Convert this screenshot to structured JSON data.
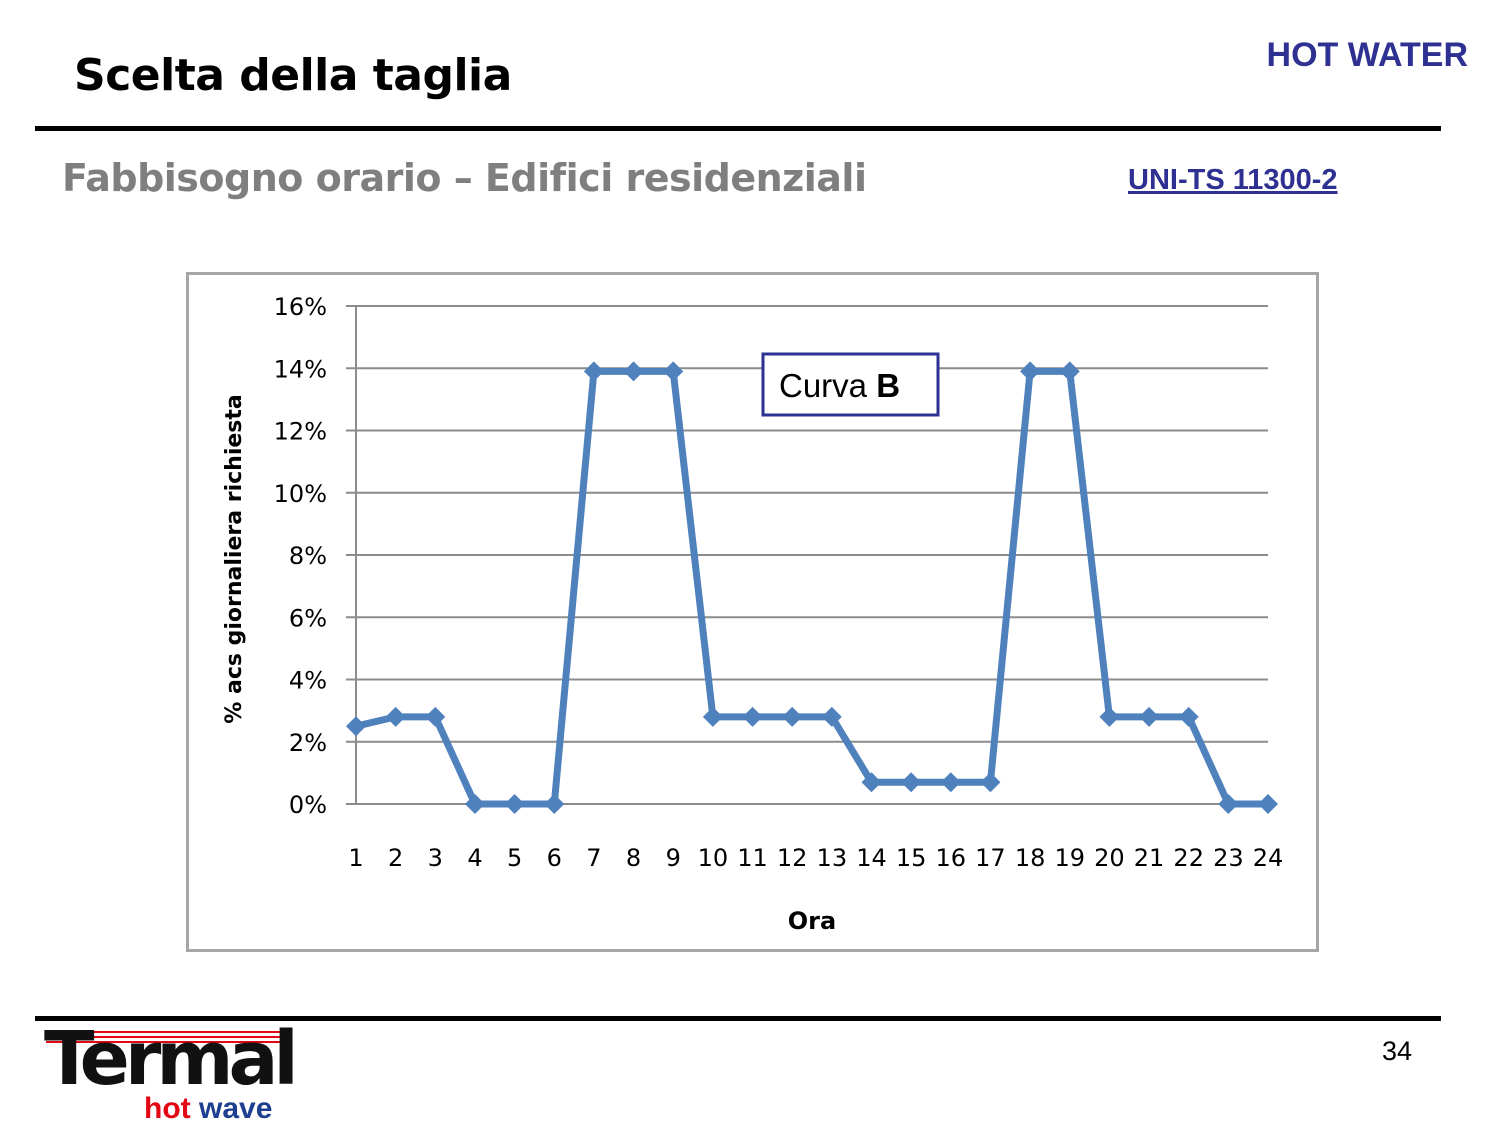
{
  "header": {
    "title": "Scelta della taglia",
    "brand_tag": "HOT WATER",
    "subtitle": "Fabbisogno orario – Edifici residenziali",
    "norm_link": "UNI-TS 11300-2"
  },
  "footer": {
    "page_number": "34",
    "logo_text": "Termal",
    "logo_sub_hot": "hot",
    "logo_sub_wave": "wave"
  },
  "colors": {
    "brand_blue": "#2e3192",
    "series": "#4f81bd",
    "logo_red": "#e30613"
  },
  "chart_data": {
    "type": "line",
    "xlabel": "Ora",
    "ylabel": "%  acs giornaliera  richiesta",
    "x": [
      1,
      2,
      3,
      4,
      5,
      6,
      7,
      8,
      9,
      10,
      11,
      12,
      13,
      14,
      15,
      16,
      17,
      18,
      19,
      20,
      21,
      22,
      23,
      24
    ],
    "series": [
      {
        "name": "",
        "values": [
          2.5,
          2.8,
          2.8,
          0,
          0,
          0,
          13.9,
          13.9,
          13.9,
          2.8,
          2.8,
          2.8,
          2.8,
          0.7,
          0.7,
          0.7,
          0.7,
          13.9,
          13.9,
          2.8,
          2.8,
          2.8,
          0,
          0
        ]
      }
    ],
    "ylim": [
      0,
      16
    ],
    "yticks": [
      0,
      2,
      4,
      6,
      8,
      10,
      12,
      14,
      16
    ],
    "ytick_labels": [
      "0%",
      "2%",
      "4%",
      "6%",
      "8%",
      "10%",
      "12%",
      "14%",
      "16%"
    ],
    "grid": true,
    "annotation": {
      "prefix": "Curva ",
      "bold": "B"
    }
  }
}
